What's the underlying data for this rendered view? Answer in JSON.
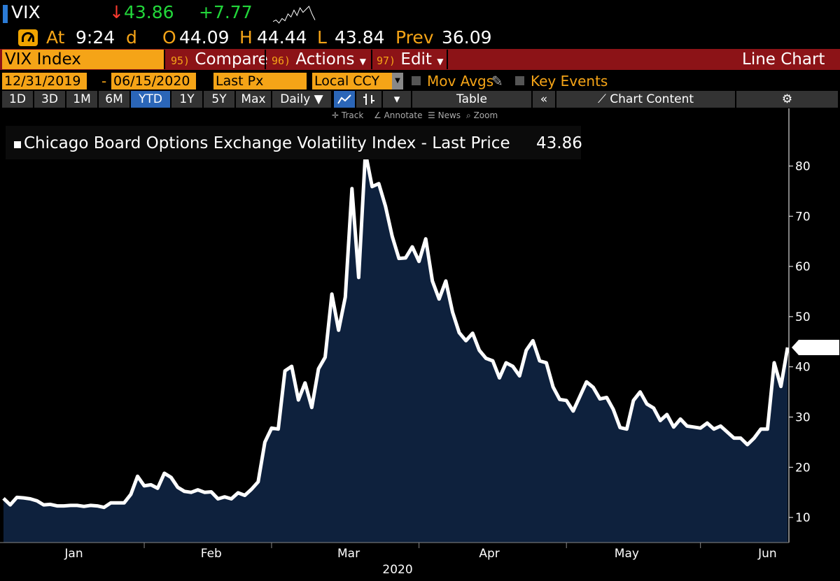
{
  "quote": {
    "ticker": "VIX",
    "arrow": "↓",
    "last": "43.86",
    "change": "+7.77",
    "at_label": "At",
    "time": "9:24",
    "time_suffix": "d",
    "open_label": "O",
    "open": "44.09",
    "high_label": "H",
    "high": "44.44",
    "low_label": "L",
    "low": "43.84",
    "prev_label": "Prev",
    "prev": "36.09",
    "sparkline": [
      20,
      22,
      18,
      24,
      21,
      30,
      26,
      35,
      28,
      38,
      32,
      36,
      40,
      30,
      22
    ]
  },
  "menu": {
    "security": "VIX Index",
    "compare_num": "95)",
    "compare": "Compare",
    "actions_num": "96)",
    "actions": "Actions",
    "edit_num": "97)",
    "edit": "Edit",
    "chart_type": "Line Chart"
  },
  "controls": {
    "start_date": "12/31/2019",
    "dash": "-",
    "end_date": "06/15/2020",
    "field": "Last Px",
    "currency": "Local CCY",
    "mov_avgs": "Mov Avgs",
    "key_events": "Key Events"
  },
  "periods": [
    "1D",
    "3D",
    "1M",
    "6M",
    "YTD",
    "1Y",
    "5Y",
    "Max"
  ],
  "active_period": "YTD",
  "frequency": "Daily",
  "table_label": "Table",
  "chart_content_label": "Chart Content",
  "tools": [
    "Track",
    "Annotate",
    "News",
    "Zoom"
  ],
  "colors": {
    "accent": "#f5a417",
    "menu_bar": "#8c1317",
    "area_fill": "#0e213d",
    "up": "#22d63a",
    "down": "#ff3b30"
  },
  "chart_data": {
    "type": "area",
    "title": "Chicago Board Options Exchange Volatility Index - Last Price",
    "last_value_label": "43.86",
    "xlabel": "2020",
    "ylabel": "",
    "ylim": [
      5,
      88
    ],
    "yticks": [
      10,
      20,
      30,
      40,
      50,
      60,
      70,
      80
    ],
    "xticks": [
      "Jan",
      "Feb",
      "Mar",
      "Apr",
      "May",
      "Jun"
    ],
    "xlim": [
      0,
      115
    ],
    "xtick_positions": [
      10.5,
      31,
      51.5,
      72.5,
      93,
      114
    ],
    "month_boundaries": [
      21,
      40,
      62,
      84,
      104
    ],
    "series": [
      {
        "name": "VIX Index - Last Price",
        "values": [
          13.8,
          12.5,
          14.0,
          13.9,
          13.7,
          13.3,
          12.5,
          12.6,
          12.3,
          12.3,
          12.4,
          12.4,
          12.2,
          12.4,
          12.3,
          12.0,
          12.9,
          12.9,
          12.9,
          14.6,
          18.2,
          16.3,
          16.5,
          15.8,
          18.8,
          18.0,
          16.0,
          15.2,
          15.0,
          15.5,
          15.0,
          15.1,
          13.7,
          14.1,
          13.7,
          14.9,
          14.4,
          15.6,
          17.1,
          25.0,
          27.8,
          27.6,
          39.2,
          40.1,
          33.4,
          36.8,
          31.9,
          39.6,
          41.9,
          54.5,
          47.3,
          53.9,
          75.5,
          57.8,
          82.7,
          75.9,
          76.5,
          72.0,
          66.0,
          61.6,
          61.7,
          63.9,
          61.0,
          65.5,
          57.1,
          53.5,
          57.1,
          50.9,
          46.8,
          45.2,
          46.7,
          43.3,
          41.7,
          41.2,
          37.8,
          40.8,
          40.1,
          38.2,
          43.3,
          45.2,
          41.2,
          40.8,
          36.0,
          33.5,
          33.3,
          31.2,
          34.1,
          37.0,
          35.9,
          33.6,
          33.9,
          31.5,
          27.9,
          27.6,
          33.3,
          35.0,
          32.6,
          31.8,
          29.3,
          30.5,
          28.0,
          29.6,
          28.2,
          28.0,
          27.8,
          28.8,
          27.6,
          28.2,
          27.0,
          25.8,
          25.8,
          24.5,
          25.8,
          27.6,
          27.6,
          40.8,
          36.1,
          43.86
        ]
      }
    ]
  }
}
